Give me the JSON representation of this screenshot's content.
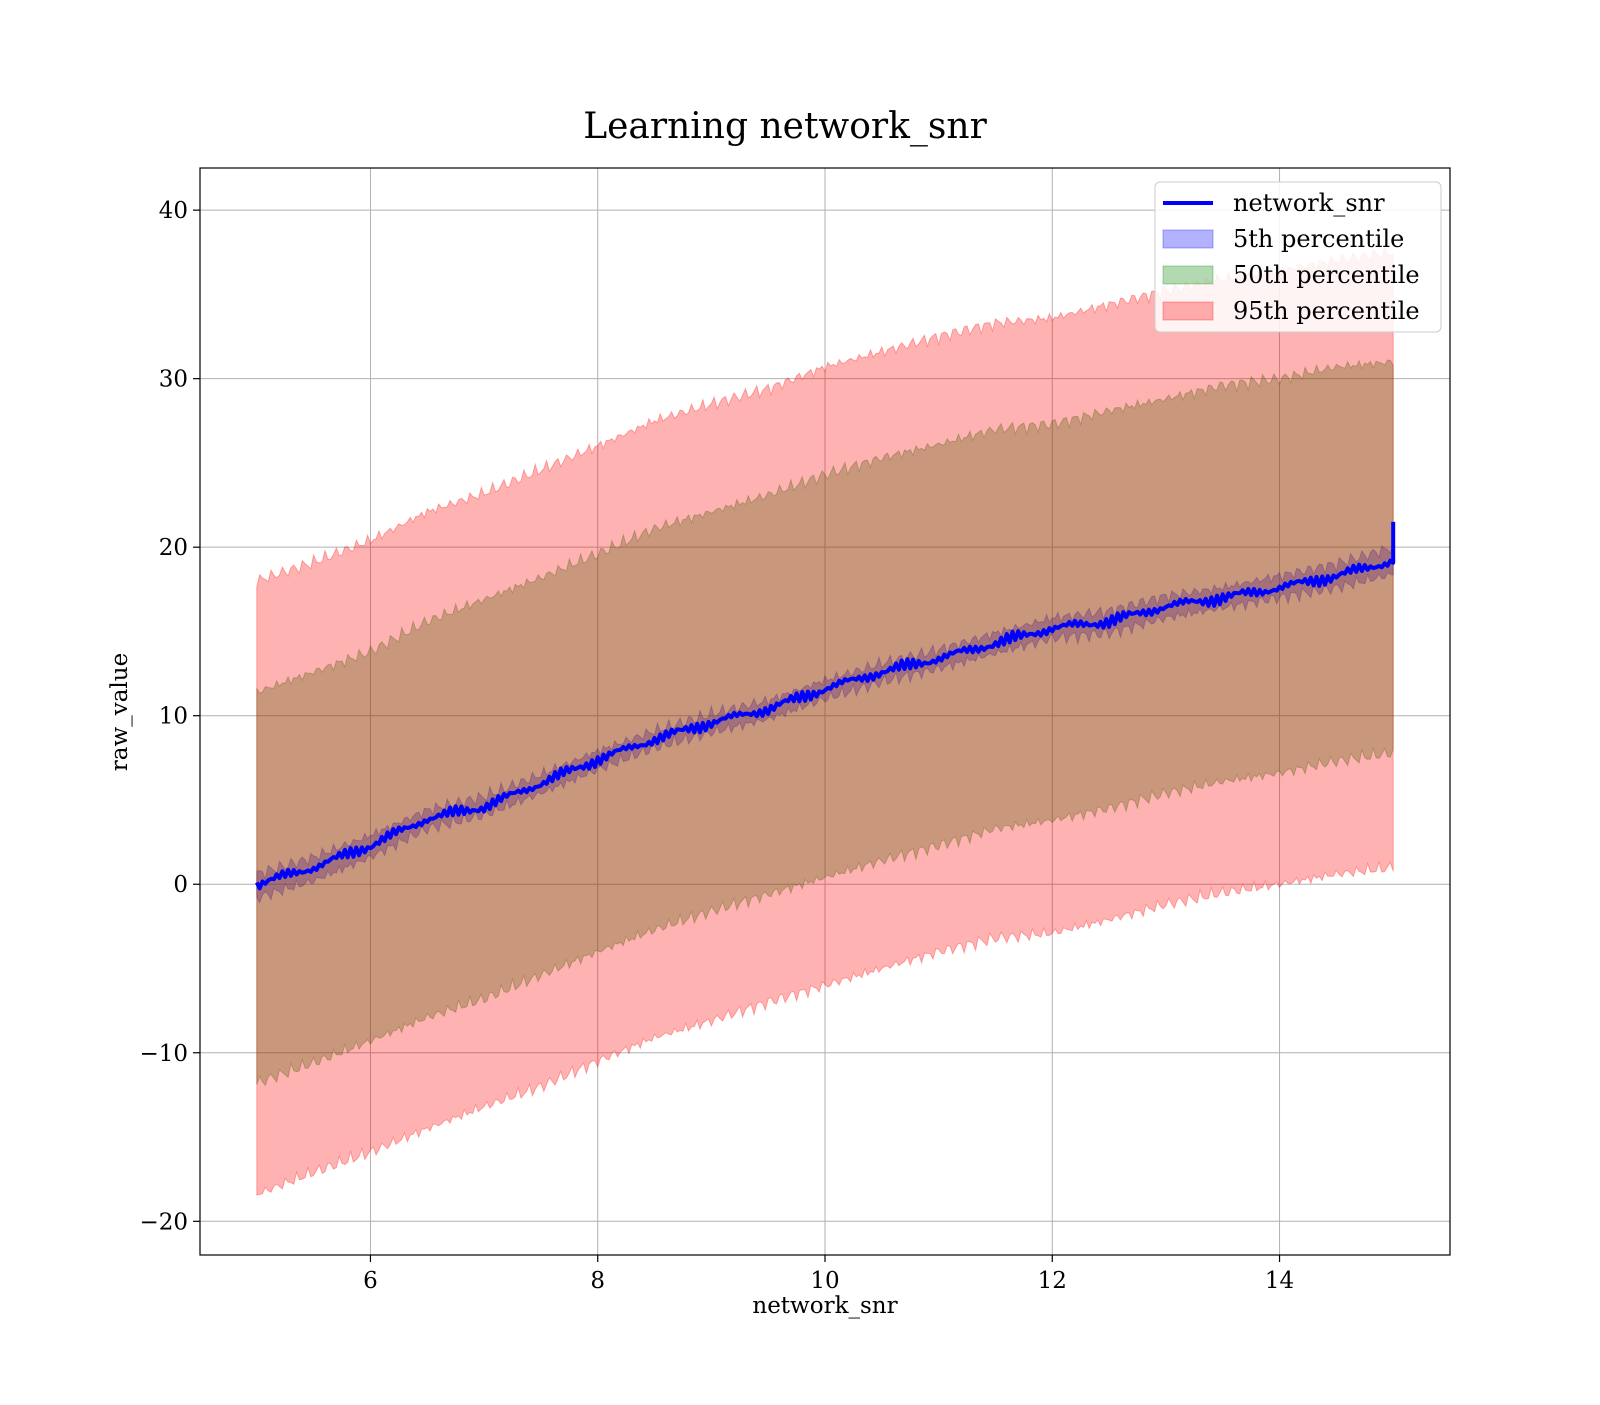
{
  "chart_data": {
    "type": "area",
    "title": "Learning network_snr",
    "xlabel": "network_snr",
    "ylabel": "raw_value",
    "xlim": [
      4.5,
      15.5
    ],
    "ylim": [
      -22,
      42.5
    ],
    "x_ticks": [
      6,
      8,
      10,
      12,
      14
    ],
    "y_ticks": [
      -20,
      -10,
      0,
      10,
      20,
      30,
      40
    ],
    "grid": true,
    "legend_position": "top-right",
    "x": [
      5,
      5.5,
      6,
      6.5,
      7,
      7.5,
      8,
      8.5,
      9,
      9.5,
      10,
      10.5,
      11,
      11.5,
      12,
      12.5,
      13,
      13.5,
      14,
      14.5,
      15
    ],
    "series": [
      {
        "name": "network_snr",
        "kind": "line",
        "color": "#0000ff",
        "values": [
          0,
          1,
          2.3,
          3.9,
          4.6,
          6,
          7.4,
          8.6,
          9.6,
          10.4,
          11.6,
          12.6,
          13.4,
          14.3,
          15.2,
          15.6,
          16.5,
          17,
          17.6,
          18.3,
          19.2
        ],
        "end_spike": 21.5
      },
      {
        "name": "5th percentile",
        "kind": "band",
        "color": "#0000ff",
        "lower": [
          -0.8,
          0.2,
          1.6,
          3.3,
          4.1,
          5.4,
          6.8,
          8.1,
          9,
          9.8,
          11,
          12,
          12.8,
          13.7,
          14.6,
          14.9,
          15.8,
          16.4,
          17,
          17.6,
          18.4
        ],
        "upper": [
          0.6,
          1.6,
          2.9,
          4.4,
          5.2,
          6.5,
          7.9,
          9.1,
          10.1,
          10.9,
          12.1,
          13.1,
          13.9,
          14.9,
          15.8,
          16.2,
          17.1,
          17.6,
          18.3,
          19,
          20
        ]
      },
      {
        "name": "50th percentile",
        "kind": "band",
        "color": "#008000",
        "lower": [
          -11.8,
          -10.6,
          -9.3,
          -7.9,
          -6.8,
          -5.4,
          -4,
          -2.7,
          -1.6,
          -0.6,
          0.4,
          1.4,
          2.3,
          3.3,
          3.8,
          4.5,
          5.4,
          6.1,
          6.6,
          7.3,
          7.8
        ],
        "upper": [
          11.4,
          12.6,
          13.8,
          15.6,
          16.9,
          18.2,
          19.6,
          21.1,
          22.1,
          23.1,
          24.3,
          25.3,
          26.1,
          27,
          27.3,
          28.1,
          28.8,
          29.6,
          30,
          30.7,
          31
        ]
      },
      {
        "name": "95th percentile",
        "kind": "band",
        "color": "#ff0000",
        "lower": [
          -18.4,
          -17.1,
          -15.9,
          -14.5,
          -13.2,
          -12,
          -10.5,
          -9.1,
          -8.1,
          -7,
          -6,
          -5,
          -4,
          -3.2,
          -2.9,
          -2.1,
          -1.2,
          -0.5,
          0,
          0.6,
          1
        ],
        "upper": [
          18,
          19.1,
          20.4,
          22.1,
          23.2,
          24.6,
          26,
          27.5,
          28.5,
          29.4,
          30.7,
          31.6,
          32.5,
          33.3,
          33.6,
          34.4,
          35.2,
          35.9,
          36.4,
          37,
          37.5
        ]
      }
    ]
  }
}
